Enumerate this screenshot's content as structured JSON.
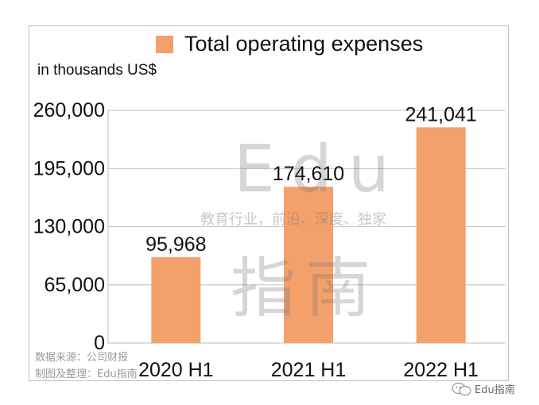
{
  "chart_data": {
    "type": "bar",
    "categories": [
      "2020 H1",
      "2021 H1",
      "2022 H1"
    ],
    "series": [
      {
        "name": "Total operating expenses",
        "values": [
          95968,
          174610,
          241041
        ]
      }
    ],
    "data_labels": [
      "95,968",
      "174,610",
      "241,041"
    ],
    "ylabel": "in thousands US$",
    "ylim": [
      0,
      260000
    ],
    "yticks": [
      0,
      65000,
      130000,
      195000,
      260000
    ],
    "ytick_labels": [
      "0",
      "65,000",
      "130,000",
      "195,000",
      "260,000"
    ],
    "grid": true,
    "legend_position": "top",
    "bar_color": "#f4a06a",
    "grid_color": "#bdbdbd"
  },
  "watermark": {
    "edu": "Edu",
    "slogan": "教育行业，前沿、深度、独家",
    "zhinan": "指南"
  },
  "source_note": {
    "line1": "数据来源：公司财报",
    "line2": "制图及整理：Edu指南"
  },
  "brand": {
    "icon": "wechat-icon",
    "text": "Edu指南"
  }
}
